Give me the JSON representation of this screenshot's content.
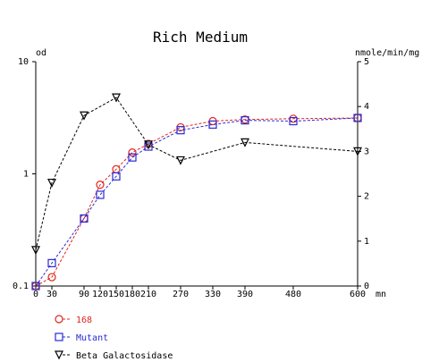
{
  "chart_data": {
    "type": "line",
    "title": "Rich Medium",
    "left_axis": {
      "unit_label": "od",
      "scale": "log",
      "range": [
        0.1,
        10
      ],
      "ticks": [
        {
          "value": 0.1,
          "label": "0.1"
        },
        {
          "value": 1,
          "label": "1"
        },
        {
          "value": 10,
          "label": "10"
        }
      ]
    },
    "right_axis": {
      "unit_label": "nmole/min/mg",
      "scale": "linear",
      "range": [
        0,
        5
      ],
      "ticks": [
        {
          "value": 0,
          "label": "0"
        },
        {
          "value": 1,
          "label": "1"
        },
        {
          "value": 2,
          "label": "2"
        },
        {
          "value": 3,
          "label": "3"
        },
        {
          "value": 4,
          "label": "4"
        },
        {
          "value": 5,
          "label": "5"
        }
      ]
    },
    "x_axis": {
      "unit_label": "mn",
      "range": [
        0,
        600
      ],
      "ticks": [
        {
          "value": 0,
          "label": "0"
        },
        {
          "value": 30,
          "label": "30"
        },
        {
          "value": 90,
          "label": "90"
        },
        {
          "value": 120,
          "label": "120"
        },
        {
          "value": 150,
          "label": "150"
        },
        {
          "value": 180,
          "label": "180"
        },
        {
          "value": 210,
          "label": "210"
        },
        {
          "value": 270,
          "label": "270"
        },
        {
          "value": 330,
          "label": "330"
        },
        {
          "value": 390,
          "label": "390"
        },
        {
          "value": 480,
          "label": "480"
        },
        {
          "value": 600,
          "label": "600"
        }
      ]
    },
    "grid": false,
    "legend_position": "bottom-left",
    "series": [
      {
        "name": "168",
        "axis": "left",
        "marker": "circle",
        "color": "#e0241b",
        "x": [
          0,
          30,
          90,
          120,
          150,
          180,
          210,
          270,
          330,
          390,
          480,
          600
        ],
        "y": [
          0.1,
          0.12,
          0.4,
          0.8,
          1.1,
          1.55,
          1.85,
          2.6,
          2.95,
          3.05,
          3.1,
          3.15
        ]
      },
      {
        "name": "Mutant",
        "axis": "left",
        "marker": "square",
        "color": "#2a2ad6",
        "x": [
          0,
          30,
          90,
          120,
          150,
          180,
          210,
          270,
          330,
          390,
          480,
          600
        ],
        "y": [
          0.1,
          0.16,
          0.4,
          0.65,
          0.95,
          1.4,
          1.75,
          2.45,
          2.75,
          3.0,
          2.95,
          3.15
        ]
      },
      {
        "name": "Beta Galactosidase",
        "axis": "right",
        "marker": "triangle-down",
        "color": "#000000",
        "x": [
          0,
          30,
          90,
          150,
          210,
          270,
          390,
          600
        ],
        "y": [
          0.8,
          2.3,
          3.8,
          4.2,
          3.15,
          2.8,
          3.2,
          3.0
        ]
      }
    ]
  }
}
